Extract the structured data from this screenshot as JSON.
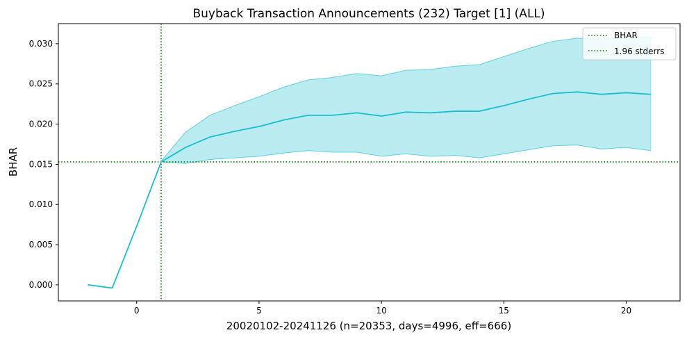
{
  "chart_data": {
    "type": "line",
    "title": "Buyback Transaction Announcements (232) Target [1] (ALL)",
    "xlabel": "20020102-20241126 (n=20353, days=4996, eff=666)",
    "ylabel": "BHAR",
    "xlim": [
      -3.2,
      22.2
    ],
    "ylim": [
      -0.002,
      0.0325
    ],
    "xticks": [
      0,
      5,
      10,
      15,
      20
    ],
    "xtick_labels": [
      "0",
      "5",
      "10",
      "15",
      "20"
    ],
    "yticks": [
      0.0,
      0.005,
      0.01,
      0.015,
      0.02,
      0.025,
      0.03
    ],
    "ytick_labels": [
      "0.000",
      "0.005",
      "0.010",
      "0.015",
      "0.020",
      "0.025",
      "0.030"
    ],
    "grid": false,
    "legend": {
      "placement": "top-right",
      "entries": [
        {
          "label": "BHAR",
          "style": "dotted",
          "color": "#008000"
        },
        {
          "label": "1.96 stderrs",
          "style": "dotted",
          "color": "#008000"
        }
      ]
    },
    "series": [
      {
        "kind": "line",
        "color": "#17becf",
        "x": [
          -2,
          -1,
          0,
          1,
          2,
          3,
          4,
          5,
          6,
          7,
          8,
          9,
          10,
          11,
          12,
          13,
          14,
          15,
          16,
          17,
          18,
          19,
          20,
          21
        ],
        "y": [
          0.0,
          -0.0004,
          0.0073,
          0.0153,
          0.0171,
          0.0184,
          0.0191,
          0.0197,
          0.0205,
          0.0211,
          0.0211,
          0.0214,
          0.021,
          0.0215,
          0.0214,
          0.0216,
          0.0216,
          0.0223,
          0.0231,
          0.0238,
          0.024,
          0.0237,
          0.0239,
          0.0237
        ]
      },
      {
        "kind": "band",
        "color": "#17becf",
        "opacity": 0.3,
        "x": [
          1,
          2,
          3,
          4,
          5,
          6,
          7,
          8,
          9,
          10,
          11,
          12,
          13,
          14,
          15,
          16,
          17,
          18,
          19,
          20,
          21
        ],
        "upper": [
          0.0154,
          0.019,
          0.0211,
          0.0223,
          0.0234,
          0.0246,
          0.0255,
          0.0258,
          0.0263,
          0.026,
          0.0267,
          0.0268,
          0.0272,
          0.0274,
          0.0284,
          0.0294,
          0.0303,
          0.0307,
          0.0305,
          0.0308,
          0.0308
        ],
        "lower": [
          0.0153,
          0.0151,
          0.0156,
          0.0158,
          0.016,
          0.0164,
          0.0167,
          0.0165,
          0.0165,
          0.016,
          0.0163,
          0.016,
          0.0161,
          0.0158,
          0.0163,
          0.0168,
          0.0173,
          0.0174,
          0.0169,
          0.0171,
          0.0167
        ]
      }
    ],
    "reference_lines": [
      {
        "orientation": "vertical",
        "x": 1,
        "style": "dotted",
        "color": "#008000"
      },
      {
        "orientation": "horizontal",
        "y": 0.0153,
        "style": "dotted",
        "color": "#008000"
      }
    ]
  }
}
